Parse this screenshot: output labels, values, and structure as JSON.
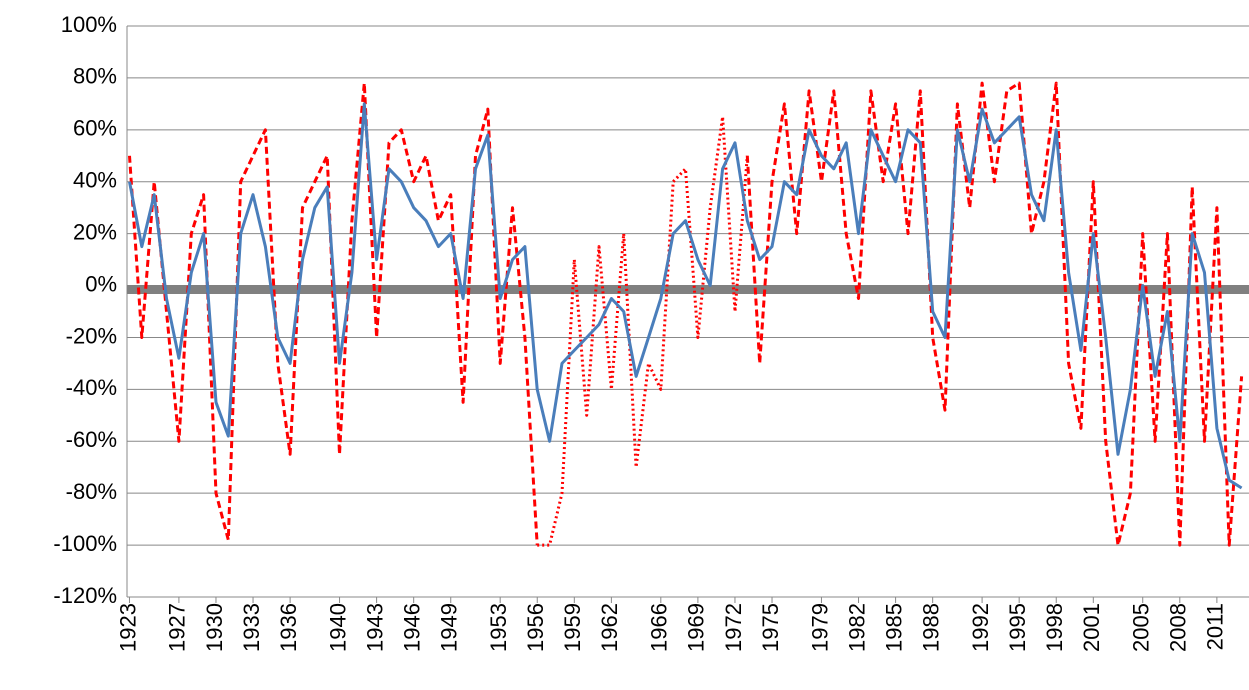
{
  "chart_data": {
    "type": "line",
    "x": [
      1923,
      1924,
      1925,
      1926,
      1927,
      1928,
      1929,
      1930,
      1931,
      1932,
      1933,
      1934,
      1935,
      1936,
      1937,
      1938,
      1939,
      1940,
      1941,
      1942,
      1943,
      1944,
      1945,
      1946,
      1947,
      1948,
      1949,
      1950,
      1951,
      1952,
      1953,
      1954,
      1955,
      1956,
      1957,
      1958,
      1959,
      1960,
      1961,
      1962,
      1963,
      1964,
      1965,
      1966,
      1967,
      1968,
      1969,
      1970,
      1971,
      1972,
      1973,
      1974,
      1975,
      1976,
      1977,
      1978,
      1979,
      1980,
      1981,
      1982,
      1983,
      1984,
      1985,
      1986,
      1987,
      1988,
      1989,
      1990,
      1991,
      1992,
      1993,
      1994,
      1995,
      1996,
      1997,
      1998,
      1999,
      2000,
      2001,
      2002,
      2003,
      2004,
      2005,
      2006,
      2007,
      2008,
      2009,
      2010,
      2011,
      2012,
      2013
    ],
    "series": [
      {
        "color": "#4a7ebb",
        "style": "solid",
        "values": [
          40,
          15,
          35,
          -5,
          -28,
          5,
          20,
          -45,
          -58,
          20,
          35,
          15,
          -20,
          -30,
          10,
          30,
          38,
          -30,
          5,
          70,
          10,
          45,
          40,
          30,
          25,
          15,
          20,
          -5,
          45,
          58,
          -5,
          10,
          15,
          -40,
          -60,
          -30,
          -25,
          -20,
          -15,
          -5,
          -10,
          -35,
          -20,
          -5,
          20,
          25,
          10,
          0,
          45,
          55,
          25,
          10,
          15,
          40,
          35,
          60,
          50,
          45,
          55,
          20,
          60,
          50,
          40,
          60,
          55,
          -10,
          -20,
          60,
          40,
          68,
          55,
          60,
          65,
          35,
          25,
          60,
          5,
          -25,
          20,
          -20,
          -65,
          -40,
          0,
          -35,
          -10,
          -60,
          20,
          5,
          -55,
          -75,
          -78
        ]
      },
      {
        "color": "#ff0000",
        "style": "dashed",
        "values": [
          50,
          -20,
          40,
          -10,
          -60,
          20,
          35,
          -80,
          -98,
          40,
          50,
          60,
          -30,
          -65,
          30,
          40,
          50,
          -65,
          25,
          78,
          -20,
          55,
          60,
          40,
          50,
          25,
          35,
          -45,
          50,
          68,
          -30,
          30,
          -20,
          -100,
          null,
          null,
          null,
          null,
          null,
          null,
          null,
          null,
          null,
          null,
          null,
          null,
          null,
          null,
          null,
          null,
          50,
          -30,
          40,
          70,
          20,
          75,
          40,
          75,
          20,
          -5,
          75,
          40,
          70,
          20,
          75,
          -20,
          -48,
          70,
          30,
          78,
          40,
          75,
          78,
          20,
          40,
          78,
          -30,
          -55,
          40,
          -60,
          -100,
          -80,
          20,
          -60,
          20,
          -100,
          38,
          -60,
          30,
          -100,
          -35
        ]
      },
      {
        "color": "#ff0000",
        "style": "dotted",
        "values": [
          null,
          null,
          null,
          null,
          null,
          null,
          null,
          null,
          null,
          null,
          null,
          null,
          null,
          null,
          null,
          null,
          null,
          null,
          null,
          null,
          null,
          null,
          null,
          null,
          null,
          null,
          null,
          null,
          null,
          null,
          null,
          null,
          null,
          -100,
          -100,
          -80,
          10,
          -50,
          15,
          -40,
          20,
          -70,
          -30,
          -40,
          40,
          45,
          -20,
          30,
          65,
          -10,
          50,
          null,
          null,
          null,
          null,
          null,
          null,
          null,
          null,
          null,
          null,
          null,
          null,
          null,
          null,
          null,
          null,
          null,
          null,
          null,
          null,
          null,
          null,
          null,
          null,
          null,
          null,
          null,
          null,
          null,
          null,
          null,
          null,
          null,
          null,
          null,
          null,
          null,
          null,
          null,
          null
        ]
      }
    ],
    "reference_line": {
      "value": -1.5,
      "color": "#808080"
    },
    "xlim": [
      1922.8,
      2013.6
    ],
    "xticks": [
      1923,
      1927,
      1930,
      1933,
      1936,
      1940,
      1943,
      1946,
      1949,
      1953,
      1956,
      1959,
      1962,
      1966,
      1969,
      1972,
      1975,
      1979,
      1982,
      1985,
      1988,
      1992,
      1995,
      1998,
      2001,
      2005,
      2008,
      2011
    ],
    "ylim": [
      -120,
      100
    ],
    "yticks": [
      {
        "value": -120,
        "label": "-120%"
      },
      {
        "value": -100,
        "label": "-100%"
      },
      {
        "value": -80,
        "label": "-80%"
      },
      {
        "value": -60,
        "label": "-60%"
      },
      {
        "value": -40,
        "label": "-40%"
      },
      {
        "value": -20,
        "label": "-20%"
      },
      {
        "value": 0,
        "label": "0%"
      },
      {
        "value": 20,
        "label": "20%"
      },
      {
        "value": 40,
        "label": "40%"
      },
      {
        "value": 60,
        "label": "60%"
      },
      {
        "value": 80,
        "label": "80%"
      },
      {
        "value": 100,
        "label": "100%"
      }
    ],
    "grid": true
  }
}
